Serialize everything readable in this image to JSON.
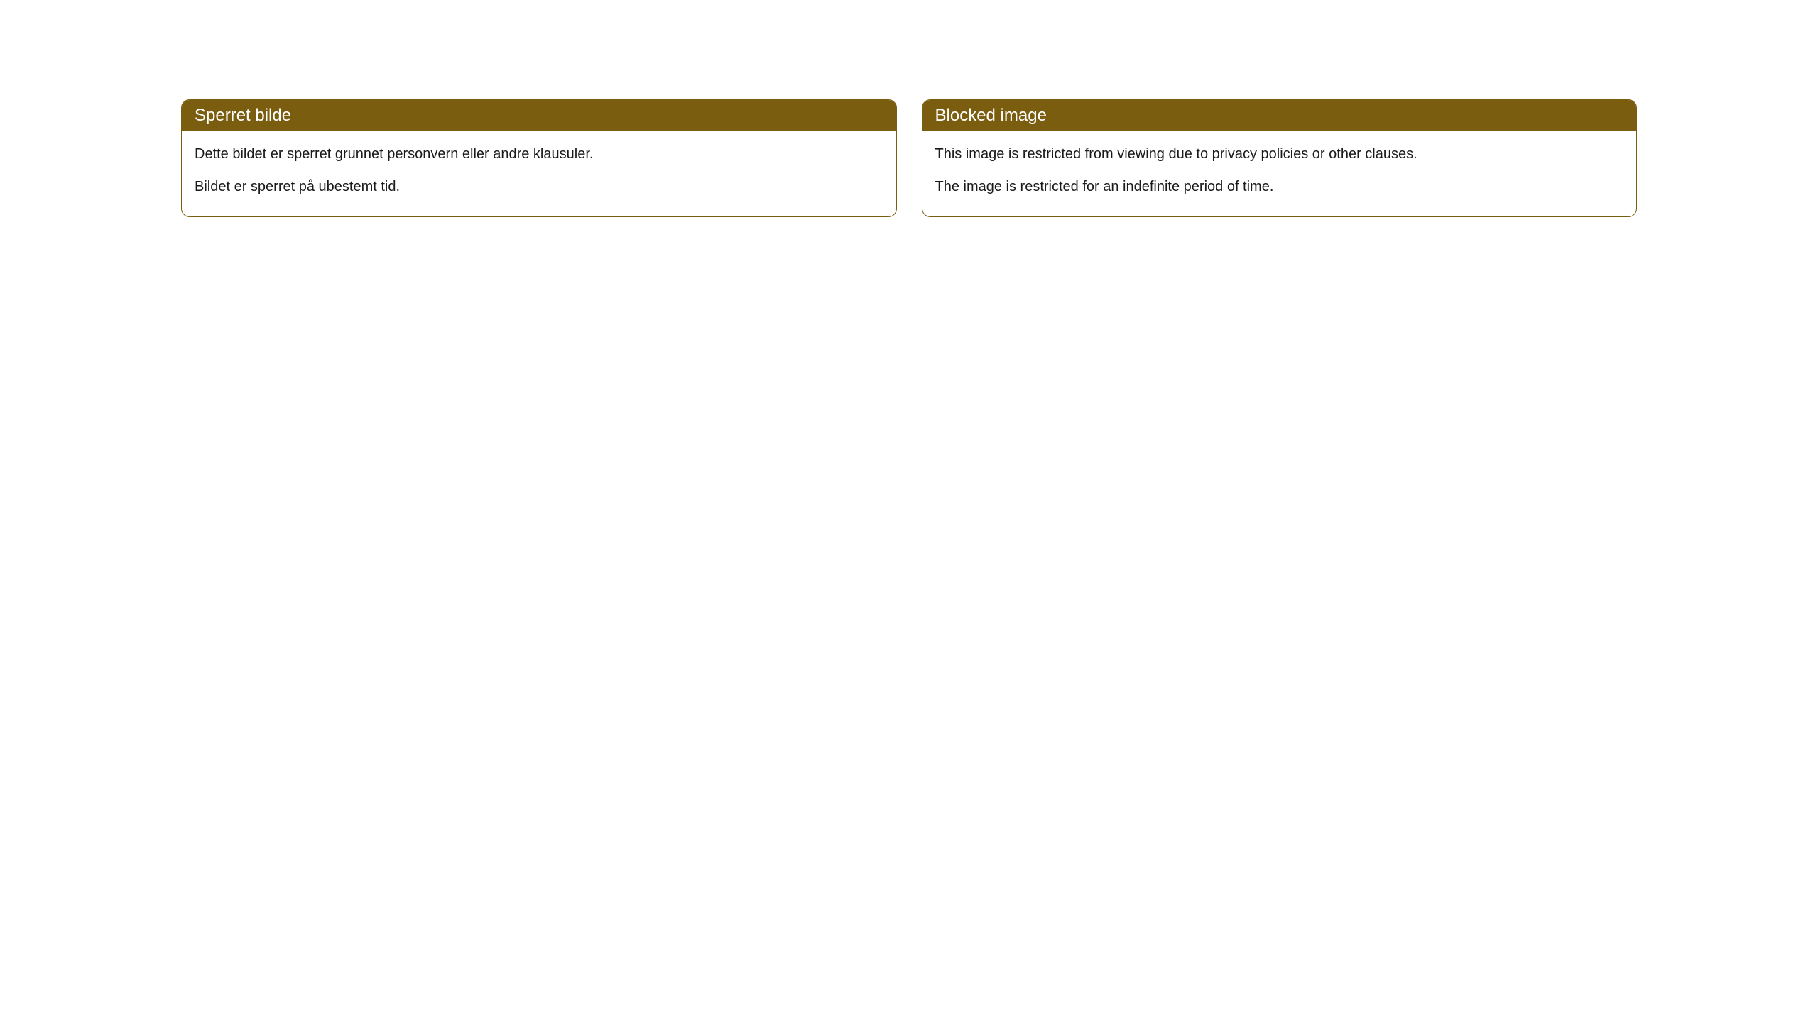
{
  "cards": [
    {
      "title": "Sperret bilde",
      "paragraph1": "Dette bildet er sperret grunnet personvern eller andre klausuler.",
      "paragraph2": "Bildet er sperret på ubestemt tid."
    },
    {
      "title": "Blocked image",
      "paragraph1": "This image is restricted from viewing due to privacy policies or other clauses.",
      "paragraph2": "The image is restricted for an indefinite period of time."
    }
  ],
  "styling": {
    "header_background_color": "#7a5d0f",
    "header_text_color": "#ffffff",
    "border_color": "#7a5d0f",
    "body_background_color": "#ffffff",
    "body_text_color": "#1a1a1a",
    "border_radius": 12,
    "header_font_size": 24,
    "body_font_size": 20
  }
}
